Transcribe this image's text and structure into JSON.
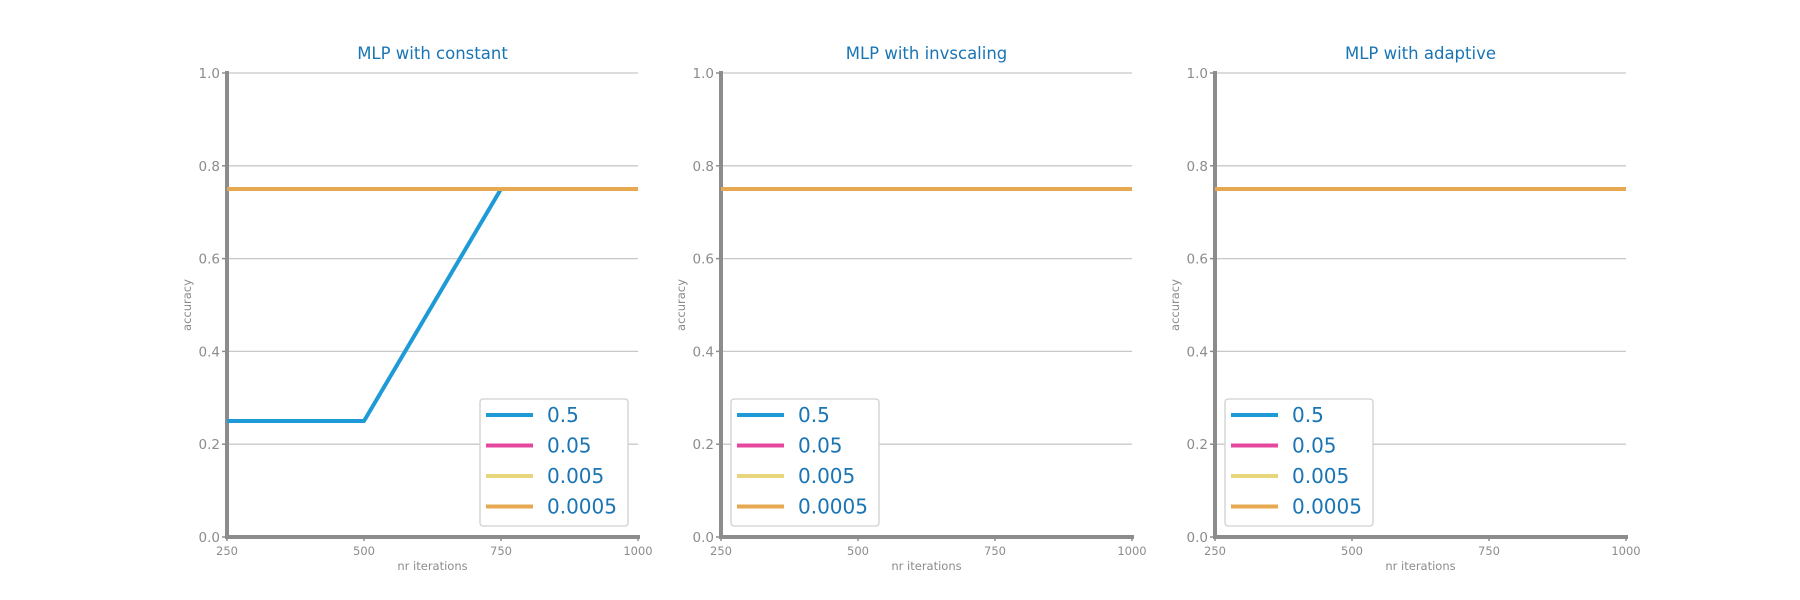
{
  "colors": {
    "title": "#1a75b4",
    "axis": "#8c8c8e",
    "grid": "#c8c8c8",
    "tick_text": "#8c8c8e",
    "legend_text": "#1a75b4",
    "legend_border": "#d0d0d0"
  },
  "chart_data": [
    {
      "type": "line",
      "title": "MLP with constant",
      "xlabel": "nr iterations",
      "ylabel": "accuracy",
      "x": [
        250,
        500,
        750,
        1000
      ],
      "xticks": [
        "250",
        "500",
        "750",
        "1000"
      ],
      "yticks": [
        "0.0",
        "0.2",
        "0.4",
        "0.6",
        "0.8",
        "1.0"
      ],
      "xlim": [
        250,
        1000
      ],
      "ylim": [
        0,
        1
      ],
      "grid": "horizontal",
      "legend_position": "lower-right",
      "series": [
        {
          "name": "0.5",
          "color": "#1e9bd7",
          "values": [
            0.25,
            0.25,
            0.75,
            0.75
          ]
        },
        {
          "name": "0.05",
          "color": "#e6479e",
          "values": [
            0.75,
            0.75,
            0.75,
            0.75
          ]
        },
        {
          "name": "0.005",
          "color": "#e8d67f",
          "values": [
            0.75,
            0.75,
            0.75,
            0.75
          ]
        },
        {
          "name": "0.0005",
          "color": "#e6a850",
          "values": [
            0.75,
            0.75,
            0.75,
            0.75
          ]
        }
      ]
    },
    {
      "type": "line",
      "title": "MLP with invscaling",
      "xlabel": "nr iterations",
      "ylabel": "accuracy",
      "x": [
        250,
        500,
        750,
        1000
      ],
      "xticks": [
        "250",
        "500",
        "750",
        "1000"
      ],
      "yticks": [
        "0.0",
        "0.2",
        "0.4",
        "0.6",
        "0.8",
        "1.0"
      ],
      "xlim": [
        250,
        1000
      ],
      "ylim": [
        0,
        1
      ],
      "grid": "horizontal",
      "legend_position": "lower-left",
      "series": [
        {
          "name": "0.5",
          "color": "#1e9bd7",
          "values": [
            0.75,
            0.75,
            0.75,
            0.75
          ]
        },
        {
          "name": "0.05",
          "color": "#e6479e",
          "values": [
            0.75,
            0.75,
            0.75,
            0.75
          ]
        },
        {
          "name": "0.005",
          "color": "#e8d67f",
          "values": [
            0.75,
            0.75,
            0.75,
            0.75
          ]
        },
        {
          "name": "0.0005",
          "color": "#e6a850",
          "values": [
            0.75,
            0.75,
            0.75,
            0.75
          ]
        }
      ]
    },
    {
      "type": "line",
      "title": "MLP with adaptive",
      "xlabel": "nr iterations",
      "ylabel": "accuracy",
      "x": [
        250,
        500,
        750,
        1000
      ],
      "xticks": [
        "250",
        "500",
        "750",
        "1000"
      ],
      "yticks": [
        "0.0",
        "0.2",
        "0.4",
        "0.6",
        "0.8",
        "1.0"
      ],
      "xlim": [
        250,
        1000
      ],
      "ylim": [
        0,
        1
      ],
      "grid": "horizontal",
      "legend_position": "lower-left",
      "series": [
        {
          "name": "0.5",
          "color": "#1e9bd7",
          "values": [
            0.75,
            0.75,
            0.75,
            0.75
          ]
        },
        {
          "name": "0.05",
          "color": "#e6479e",
          "values": [
            0.75,
            0.75,
            0.75,
            0.75
          ]
        },
        {
          "name": "0.005",
          "color": "#e8d67f",
          "values": [
            0.75,
            0.75,
            0.75,
            0.75
          ]
        },
        {
          "name": "0.0005",
          "color": "#e6a850",
          "values": [
            0.75,
            0.75,
            0.75,
            0.75
          ]
        }
      ]
    }
  ]
}
